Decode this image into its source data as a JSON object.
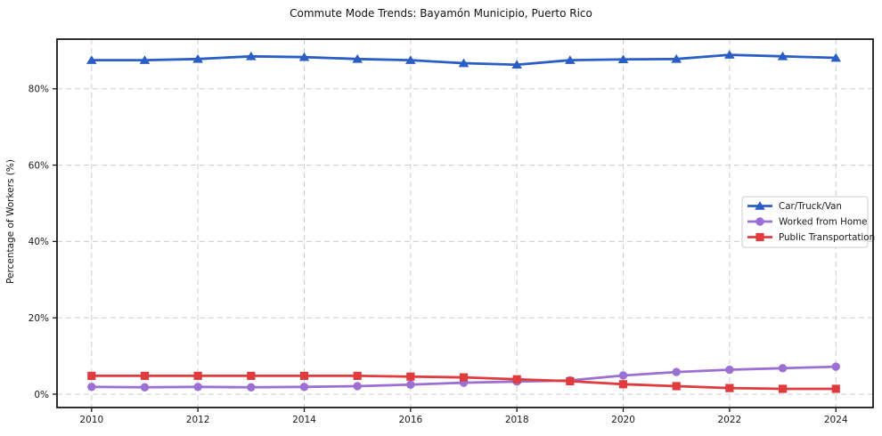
{
  "chart_data": {
    "type": "line",
    "title": "Commute Mode Trends: Bayamón Municipio, Puerto Rico",
    "xlabel": "",
    "ylabel": "Percentage of Workers (%)",
    "x": [
      2010,
      2011,
      2012,
      2013,
      2014,
      2015,
      2016,
      2017,
      2018,
      2019,
      2020,
      2021,
      2022,
      2023,
      2024
    ],
    "series": [
      {
        "name": "Car/Truck/Van",
        "color": "#2a5ec5",
        "marker": "triangle",
        "values": [
          87.5,
          87.5,
          87.8,
          88.5,
          88.3,
          87.8,
          87.5,
          86.7,
          86.3,
          87.5,
          87.7,
          87.8,
          88.9,
          88.5,
          88.1
        ]
      },
      {
        "name": "Worked from Home",
        "color": "#9b6fd4",
        "marker": "circle",
        "values": [
          1.9,
          1.8,
          1.9,
          1.8,
          1.9,
          2.1,
          2.5,
          3.0,
          3.3,
          3.6,
          4.9,
          5.8,
          6.4,
          6.8,
          7.2
        ]
      },
      {
        "name": "Public Transportation",
        "color": "#e03b3e",
        "marker": "square",
        "values": [
          4.8,
          4.8,
          4.8,
          4.8,
          4.8,
          4.8,
          4.6,
          4.4,
          3.9,
          3.4,
          2.6,
          2.1,
          1.6,
          1.4,
          1.4
        ]
      }
    ],
    "xticks": {
      "values": [
        2010,
        2012,
        2014,
        2016,
        2018,
        2020,
        2022,
        2024
      ],
      "labels": [
        "2010",
        "2012",
        "2014",
        "2016",
        "2018",
        "2020",
        "2022",
        "2024"
      ]
    },
    "yticks": {
      "values": [
        0,
        20,
        40,
        60,
        80
      ],
      "labels": [
        "0%",
        "20%",
        "40%",
        "60%",
        "80%"
      ]
    },
    "xlim": [
      2009.35,
      2024.7
    ],
    "ylim": [
      -3.5,
      93
    ],
    "grid": true,
    "grid_color": "#cdcdcd",
    "axis_color": "#1a1a1a",
    "legend": {
      "position": "center-right",
      "background": "#ffffff",
      "border_color": "#cccccc",
      "labels": [
        "Car/Truck/Van",
        "Worked from Home",
        "Public Transportation"
      ]
    }
  }
}
